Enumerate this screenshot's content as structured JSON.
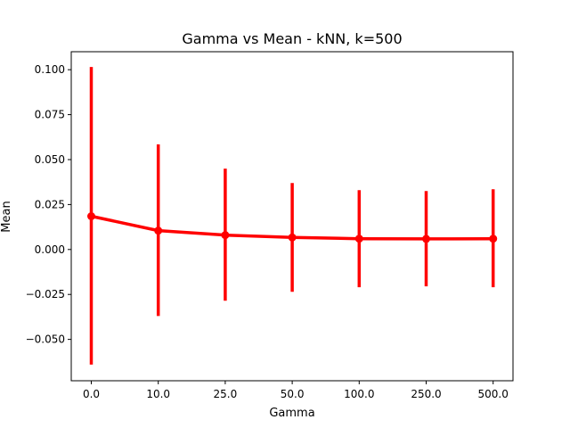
{
  "chart_data": {
    "type": "line",
    "title": "Gamma vs Mean - kNN, k=500",
    "xlabel": "Gamma",
    "ylabel": "Mean",
    "categories": [
      "0.0",
      "10.0",
      "25.0",
      "50.0",
      "100.0",
      "250.0",
      "500.0"
    ],
    "series": [
      {
        "values": [
          0.0185,
          0.0105,
          0.008,
          0.0067,
          0.006,
          0.0059,
          0.006
        ],
        "err_low": [
          -0.064,
          -0.037,
          -0.0285,
          -0.0235,
          -0.021,
          -0.0205,
          -0.021
        ],
        "err_high": [
          0.1015,
          0.0585,
          0.045,
          0.037,
          0.033,
          0.0325,
          0.0335
        ],
        "color": "#ff0000"
      }
    ],
    "ylim": [
      -0.073,
      0.11
    ],
    "yticks": [
      -0.05,
      -0.025,
      0.0,
      0.025,
      0.05,
      0.075,
      0.1
    ],
    "ytick_labels": [
      "−0.050",
      "−0.025",
      "0.000",
      "0.025",
      "0.050",
      "0.075",
      "0.100"
    ],
    "grid": false,
    "legend": "none"
  }
}
